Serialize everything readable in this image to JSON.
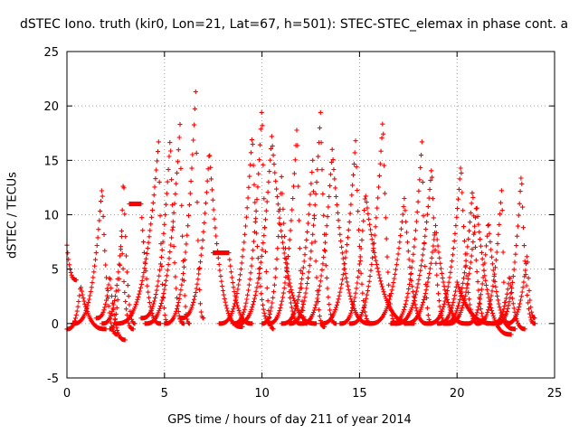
{
  "chart_data": {
    "type": "scatter",
    "title": "dSTEC Iono. truth (kir0, Lon=21, Lat=67, h=501): STEC-STEC_elemax in phase cont. a",
    "xlabel": "GPS time / hours of day 211 of year 2014",
    "ylabel": "dSTEC  / TECUs",
    "xlim": [
      0,
      25
    ],
    "ylim": [
      -5,
      25
    ],
    "xticks": [
      "0",
      "5",
      "10",
      "15",
      "20",
      "25"
    ],
    "yticks": [
      "-5",
      "0",
      "5",
      "10",
      "15",
      "20",
      "25"
    ],
    "grid": true,
    "marker": "plus",
    "color": "#ff0000",
    "arcs": [
      {
        "t0": 0.0,
        "peak": 0.0,
        "t1": 0.5,
        "start": 7.2,
        "max": 7.2,
        "end": 4.0
      },
      {
        "t0": 0.0,
        "peak": 0.7,
        "t1": 2.0,
        "start": -0.5,
        "max": 3.5,
        "end": -0.5
      },
      {
        "t0": 0.3,
        "peak": 1.8,
        "t1": 2.6,
        "start": 0.0,
        "max": 12.7,
        "end": -1.0
      },
      {
        "t0": 1.5,
        "peak": 2.2,
        "t1": 3.0,
        "start": 0.5,
        "max": 4.5,
        "end": -1.5
      },
      {
        "t0": 1.8,
        "peak": 2.8,
        "t1": 3.4,
        "start": 0.0,
        "max": 8.0,
        "end": -0.5
      },
      {
        "t0": 2.2,
        "peak": 2.9,
        "t1": 3.5,
        "start": -0.5,
        "max": 13.8,
        "end": 0.0
      },
      {
        "t0": 3.2,
        "peak": 3.8,
        "t1": 4.8,
        "start": 11.0,
        "max": 11.0,
        "end": 0.0
      },
      {
        "t0": 2.5,
        "peak": 4.7,
        "t1": 5.2,
        "start": 0.0,
        "max": 16.7,
        "end": 0.0
      },
      {
        "t0": 3.8,
        "peak": 5.3,
        "t1": 6.0,
        "start": 0.5,
        "max": 17.3,
        "end": 0.0
      },
      {
        "t0": 4.0,
        "peak": 5.8,
        "t1": 6.3,
        "start": 0.0,
        "max": 18.3,
        "end": 0.0
      },
      {
        "t0": 5.0,
        "peak": 6.6,
        "t1": 7.0,
        "start": 0.0,
        "max": 21.3,
        "end": 0.5
      },
      {
        "t0": 5.8,
        "peak": 7.3,
        "t1": 9.0,
        "start": 0.5,
        "max": 16.0,
        "end": -0.3
      },
      {
        "t0": 7.5,
        "peak": 8.3,
        "t1": 9.5,
        "start": 6.5,
        "max": 6.5,
        "end": 0.0
      },
      {
        "t0": 7.8,
        "peak": 9.5,
        "t1": 10.5,
        "start": 0.0,
        "max": 17.5,
        "end": 0.0
      },
      {
        "t0": 8.5,
        "peak": 10.0,
        "t1": 10.6,
        "start": 0.0,
        "max": 20.2,
        "end": -0.5
      },
      {
        "t0": 8.7,
        "peak": 10.5,
        "t1": 12.8,
        "start": 0.0,
        "max": 17.2,
        "end": 0.0
      },
      {
        "t0": 10.0,
        "peak": 11.0,
        "t1": 12.0,
        "start": 0.0,
        "max": 13.5,
        "end": 0.0
      },
      {
        "t0": 10.3,
        "peak": 11.8,
        "t1": 12.3,
        "start": 0.0,
        "max": 18.5,
        "end": 0.0
      },
      {
        "t0": 11.0,
        "peak": 12.6,
        "t1": 13.2,
        "start": 0.0,
        "max": 15.0,
        "end": -0.3
      },
      {
        "t0": 11.4,
        "peak": 13.0,
        "t1": 13.8,
        "start": 0.0,
        "max": 19.4,
        "end": 0.0
      },
      {
        "t0": 12.0,
        "peak": 13.6,
        "t1": 15.6,
        "start": 0.0,
        "max": 16.0,
        "end": 0.0
      },
      {
        "t0": 13.0,
        "peak": 14.8,
        "t1": 15.6,
        "start": 0.0,
        "max": 16.8,
        "end": 0.0
      },
      {
        "t0": 14.0,
        "peak": 15.3,
        "t1": 17.8,
        "start": 0.0,
        "max": 12.0,
        "end": 0.0
      },
      {
        "t0": 14.5,
        "peak": 16.2,
        "t1": 16.9,
        "start": 0.0,
        "max": 19.0,
        "end": 0.0
      },
      {
        "t0": 15.5,
        "peak": 17.3,
        "t1": 18.5,
        "start": 0.0,
        "max": 11.5,
        "end": 0.0
      },
      {
        "t0": 16.6,
        "peak": 18.2,
        "t1": 18.7,
        "start": 0.0,
        "max": 16.7,
        "end": 0.0
      },
      {
        "t0": 16.8,
        "peak": 18.7,
        "t1": 19.5,
        "start": 0.0,
        "max": 14.5,
        "end": 0.0
      },
      {
        "t0": 17.3,
        "peak": 18.9,
        "t1": 20.5,
        "start": 0.0,
        "max": 9.0,
        "end": 0.0
      },
      {
        "t0": 19.0,
        "peak": 20.0,
        "t1": 22.0,
        "start": 0.0,
        "max": 3.8,
        "end": 0.0
      },
      {
        "t0": 18.5,
        "peak": 20.2,
        "t1": 21.1,
        "start": 0.0,
        "max": 14.8,
        "end": 0.0
      },
      {
        "t0": 19.3,
        "peak": 20.8,
        "t1": 21.6,
        "start": 0.0,
        "max": 12.5,
        "end": 0.0
      },
      {
        "t0": 19.5,
        "peak": 21.0,
        "t1": 22.8,
        "start": 0.0,
        "max": 11.0,
        "end": -1.0
      },
      {
        "t0": 20.5,
        "peak": 21.6,
        "t1": 23.0,
        "start": 0.0,
        "max": 9.5,
        "end": -0.5
      },
      {
        "t0": 21.0,
        "peak": 22.3,
        "t1": 22.6,
        "start": 0.0,
        "max": 12.8,
        "end": 0.0
      },
      {
        "t0": 21.8,
        "peak": 22.7,
        "t1": 23.5,
        "start": 0.0,
        "max": 4.5,
        "end": -0.5
      },
      {
        "t0": 22.5,
        "peak": 23.6,
        "t1": 24.0,
        "start": 0.0,
        "max": 6.5,
        "end": 0.5
      },
      {
        "t0": 22.0,
        "peak": 23.3,
        "t1": 24.0,
        "start": 0.0,
        "max": 14.0,
        "end": 0.0
      }
    ]
  }
}
